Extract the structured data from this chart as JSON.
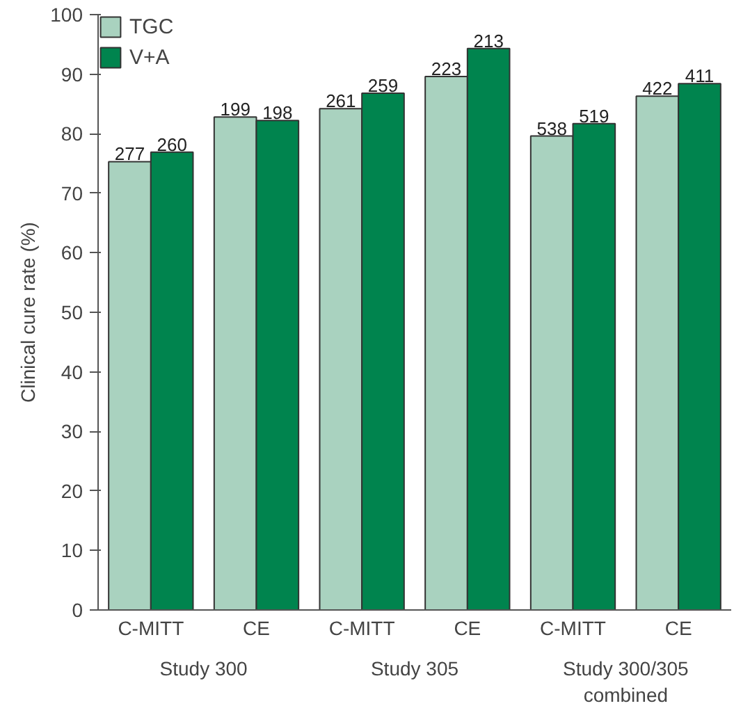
{
  "chart_data": {
    "type": "bar",
    "ylabel": "Clinical cure rate (%)",
    "categories": [
      "C-MITT",
      "CE",
      "C-MITT",
      "CE",
      "C-MITT",
      "CE"
    ],
    "series": [
      {
        "name": "TGC",
        "color": "#a9d2bf",
        "values": [
          75.3,
          82.8,
          84.2,
          89.6,
          79.6,
          86.3
        ]
      },
      {
        "name": "V+A",
        "color": "#00844e",
        "values": [
          76.9,
          82.2,
          86.8,
          94.3,
          81.7,
          88.4
        ]
      }
    ],
    "annotations": [
      "277",
      "260",
      "199",
      "198",
      "261",
      "259",
      "223",
      "213",
      "538",
      "519",
      "422",
      "411",
      "Study 300",
      "Study 305",
      "Study 300/305\ncombined"
    ],
    "ylim": [
      0,
      100
    ],
    "yticks": [
      0,
      10,
      20,
      30,
      40,
      50,
      60,
      70,
      80,
      90,
      100
    ],
    "grid": false,
    "legend": "top left"
  }
}
